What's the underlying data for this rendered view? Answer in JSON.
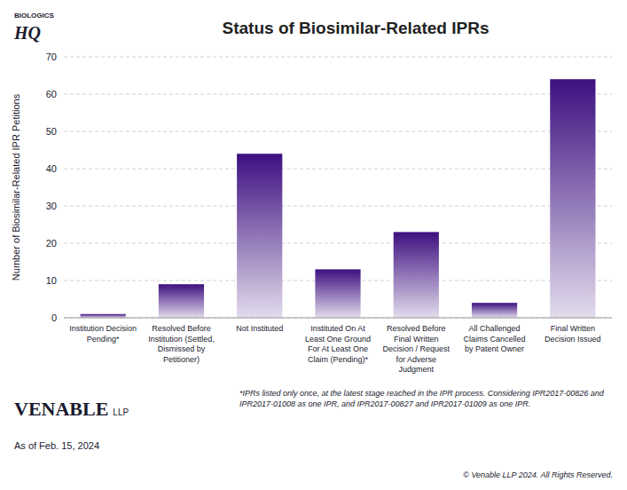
{
  "chart_data": {
    "type": "bar",
    "title": "Status of Biosimilar-Related IPRs",
    "categories": [
      "Institution Decision\nPending*",
      "Resolved Before\nInstitution (Settled,\nDismissed by\nPetitioner)",
      "Not Instituted",
      "Instituted On At\nLeast One Ground\nFor At Least One\nClaim (Pending)*",
      "Resolved Before\nFinal Written\nDecision / Request\nfor Adverse\nJudgment",
      "All Challenged\nClaims Cancelled\nby Patent Owner",
      "Final Written\nDecision Issued"
    ],
    "values": [
      1,
      9,
      44,
      13,
      23,
      4,
      64
    ],
    "color": "#3d1080",
    "ylabel": "Number of Biosimilar-Related IPR Petitions",
    "ylim": [
      0,
      70
    ],
    "yticks": [
      0,
      10,
      20,
      30,
      40,
      50,
      60,
      70
    ],
    "grid": true,
    "annotations": [
      "*IPRs listed only once, at the latest stage reached in the IPR process.  Considering IPR2017-00826 and IPR2017-01008 as one IPR, and IPR2017-00827 and IPR2017-01009 as one IPR.",
      "As of Feb. 15, 2024",
      "© Venable LLP 2024. All Rights Reserved.",
      "BIOLOGICS",
      "HQ",
      "VENABLE",
      "LLP"
    ]
  }
}
